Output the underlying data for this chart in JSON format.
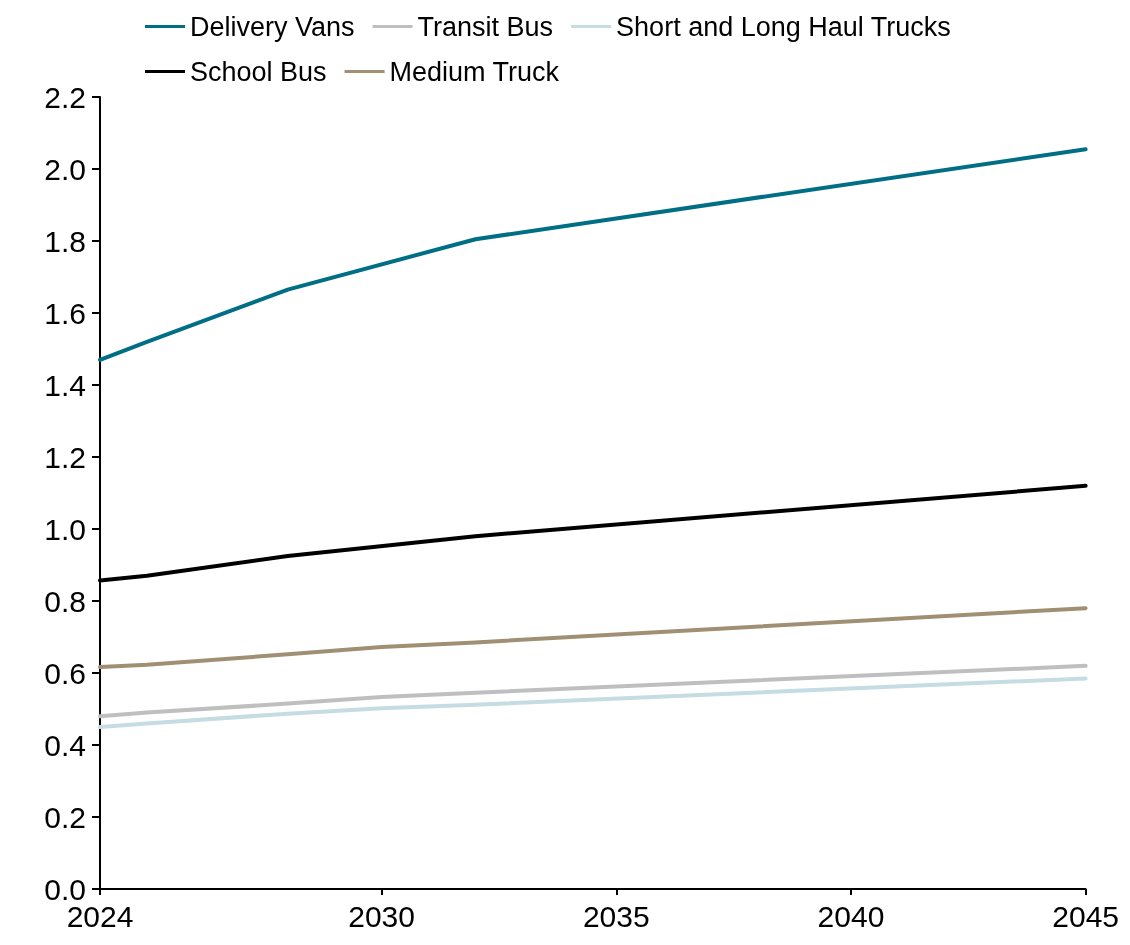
{
  "chart_data": {
    "type": "line",
    "legend": "top",
    "grid": false,
    "marker": "none",
    "line_style": "solid",
    "xlim": [
      2024,
      2045
    ],
    "xticks": [
      2024,
      2030,
      2035,
      2040,
      2045
    ],
    "ylim": [
      0,
      2.2
    ],
    "yticks": [
      {
        "value": 0,
        "label": "0.0"
      },
      {
        "value": 0.2,
        "label": "0.2"
      },
      {
        "value": 0.4,
        "label": "0.4"
      },
      {
        "value": 0.6,
        "label": "0.6"
      },
      {
        "value": 0.8,
        "label": "0.8"
      },
      {
        "value": 1,
        "label": "1.0"
      },
      {
        "value": 1.2,
        "label": "1.2"
      },
      {
        "value": 1.4,
        "label": "1.4"
      },
      {
        "value": 1.6,
        "label": "1.6"
      },
      {
        "value": 1.8,
        "label": "1.8"
      },
      {
        "value": 2,
        "label": "2.0"
      },
      {
        "value": 2.2,
        "label": "2.2"
      }
    ],
    "series": [
      {
        "name": "Delivery Vans",
        "color": "#006e85",
        "x": [
          2024,
          2025,
          2028,
          2032,
          2045
        ],
        "values": [
          1.47,
          1.52,
          1.665,
          1.805,
          2.055
        ]
      },
      {
        "name": "Transit Bus",
        "color": "#bfbfbf",
        "x": [
          2024,
          2025,
          2028,
          2030,
          2032,
          2045
        ],
        "values": [
          0.48,
          0.49,
          0.515,
          0.533,
          0.545,
          0.62
        ]
      },
      {
        "name": "Short and Long Haul Trucks",
        "color": "#c5dce3",
        "x": [
          2024,
          2025,
          2028,
          2030,
          2032,
          2045
        ],
        "values": [
          0.45,
          0.46,
          0.487,
          0.502,
          0.512,
          0.585
        ]
      },
      {
        "name": "School Bus",
        "color": "#000000",
        "x": [
          2024,
          2025,
          2028,
          2032,
          2045
        ],
        "values": [
          0.857,
          0.87,
          0.925,
          0.98,
          1.12
        ]
      },
      {
        "name": "Medium Truck",
        "color": "#a08f73",
        "x": [
          2024,
          2025,
          2028,
          2030,
          2032,
          2045
        ],
        "values": [
          0.617,
          0.623,
          0.652,
          0.672,
          0.685,
          0.78
        ]
      }
    ]
  }
}
